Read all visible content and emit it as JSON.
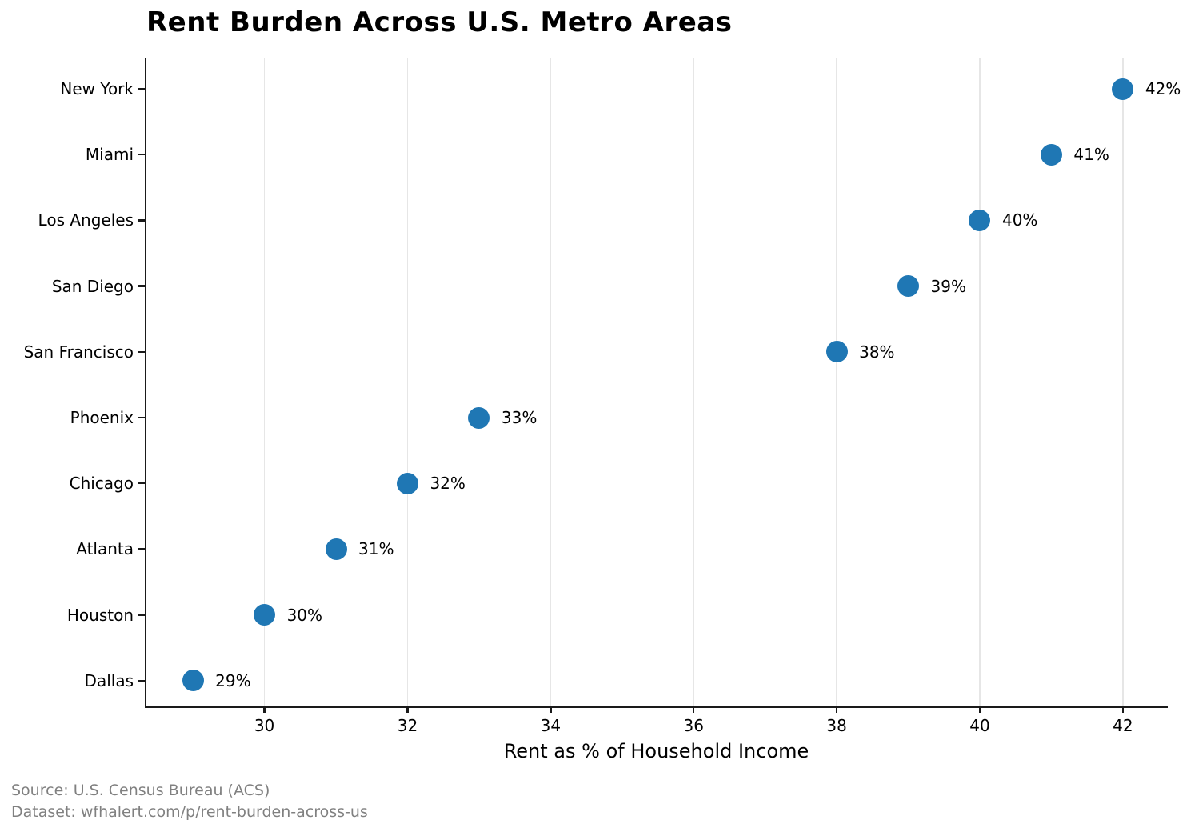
{
  "chart_data": {
    "type": "scatter",
    "subtype": "horizontal-dot-plot",
    "title": "Rent Burden Across U.S. Metro Areas",
    "xlabel": "Rent as % of Household Income",
    "ylabel": "",
    "categories": [
      "New York",
      "Miami",
      "Los Angeles",
      "San Diego",
      "San Francisco",
      "Phoenix",
      "Chicago",
      "Atlanta",
      "Houston",
      "Dallas"
    ],
    "values": [
      42,
      41,
      40,
      39,
      38,
      33,
      32,
      31,
      30,
      29
    ],
    "value_labels": [
      "42%",
      "41%",
      "40%",
      "39%",
      "38%",
      "33%",
      "32%",
      "31%",
      "30%",
      "29%"
    ],
    "xticks": [
      30,
      32,
      34,
      36,
      38,
      40,
      42
    ],
    "xlim": [
      28.35,
      42.65
    ],
    "grid": "vertical-only",
    "legend": "none",
    "marker_color": "#1f77b4",
    "gridline_color": "#e6e6e6",
    "spine_color": "#1a1a1a"
  },
  "footer": {
    "source_line": "Source: U.S. Census Bureau (ACS)",
    "dataset_line": "Dataset: wfhalert.com/p/rent-burden-across-us"
  }
}
